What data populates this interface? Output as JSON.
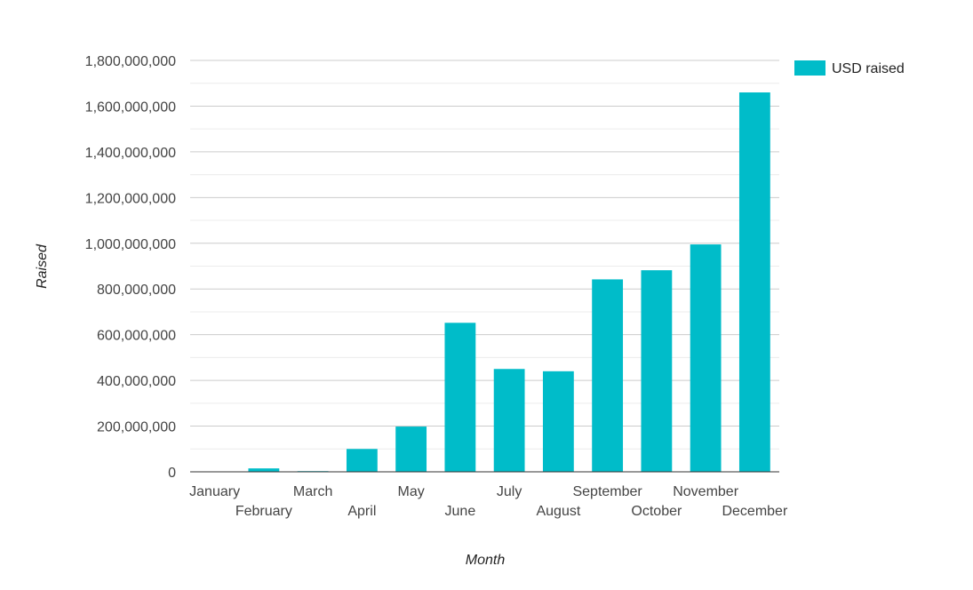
{
  "chart_data": {
    "type": "bar",
    "categories": [
      "January",
      "February",
      "March",
      "April",
      "May",
      "June",
      "July",
      "August",
      "September",
      "October",
      "November",
      "December"
    ],
    "series": [
      {
        "name": "USD raised",
        "values": [
          1000000,
          15000000,
          3000000,
          100000000,
          198000000,
          652000000,
          450000000,
          440000000,
          842000000,
          882000000,
          995000000,
          1660000000
        ],
        "color": "#00bcc9"
      }
    ],
    "xlabel": "Month",
    "ylabel": "Raised",
    "ylim": [
      0,
      1800000000
    ],
    "yticks": [
      "0",
      "200,000,000",
      "400,000,000",
      "600,000,000",
      "800,000,000",
      "1,000,000,000",
      "1,200,000,000",
      "1,400,000,000",
      "1,600,000,000",
      "1,800,000,000"
    ],
    "grid": true,
    "legend": "top-right"
  }
}
